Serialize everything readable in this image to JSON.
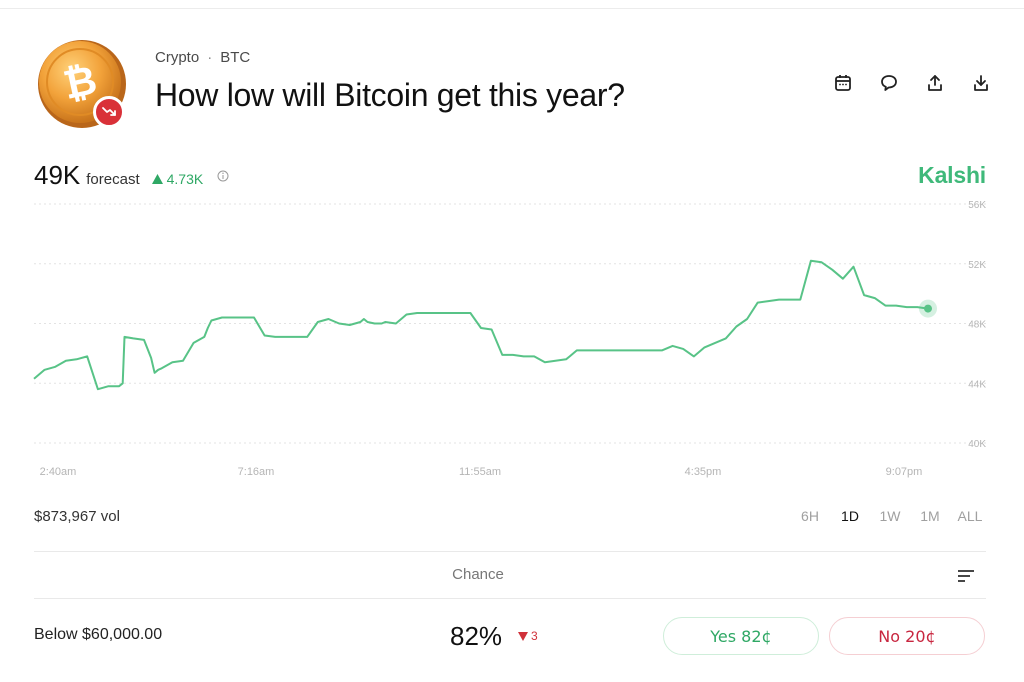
{
  "header": {
    "breadcrumb": {
      "category": "Crypto",
      "separator": "·",
      "ticker": "BTC"
    },
    "title": "How low will Bitcoin get this year?",
    "coin_icon": "bitcoin-coin-icon",
    "trend_badge_icon": "trend-down-icon",
    "toolbar": [
      "calendar-icon",
      "comment-icon",
      "share-icon",
      "download-icon"
    ]
  },
  "forecast": {
    "value": "49K",
    "label": "forecast",
    "delta": "4.73K",
    "delta_direction": "up"
  },
  "brand": "Kalshi",
  "colors": {
    "brand": "#3fb97a",
    "line": "#58c387",
    "up": "#2fa865",
    "down": "#d0313a",
    "yes": "#2fa865",
    "no": "#c8263f"
  },
  "chart_data": {
    "type": "line",
    "x_tick_labels": [
      "2:40am",
      "7:16am",
      "11:55am",
      "4:35pm",
      "9:07pm"
    ],
    "y_tick_labels": [
      "56K",
      "52K",
      "48K",
      "44K",
      "40K"
    ],
    "ylim": [
      40000,
      56000
    ],
    "grid": true,
    "series": [
      {
        "x": [
          0,
          0.6,
          1.2,
          1.8,
          2.4,
          3.0,
          3.6,
          4.2,
          4.8,
          5.0,
          5.1,
          5.6,
          6.2,
          6.6,
          6.8,
          7.0,
          7.2,
          7.8,
          8.4,
          9.0,
          9.6,
          9.8,
          10.0,
          10.6,
          11.2,
          11.8,
          12.4,
          13.0,
          13.6,
          14.2,
          14.8,
          15.4,
          16.0,
          16.6,
          17.2,
          17.8,
          18.4,
          18.6,
          18.8,
          19.2,
          19.4,
          19.6,
          19.8,
          20.4,
          21.0,
          21.6,
          22.2,
          22.8,
          23.4,
          23.6,
          24.0,
          24.6,
          25.2,
          25.8,
          26.4,
          27.0,
          27.6,
          28.2,
          28.8,
          29.4,
          30.0,
          30.2,
          30.6,
          31.2,
          31.8,
          32.4,
          33.0,
          33.6,
          34.2,
          34.8,
          35.4,
          36.0,
          36.6,
          37.2,
          37.8,
          38.4,
          39.0,
          39.6,
          40.2,
          40.8,
          41.4,
          42.0,
          42.6,
          43.2,
          43.8,
          44.4,
          45.0,
          45.6,
          46.2,
          46.8,
          47.4,
          48.0,
          48.6,
          49.2,
          49.8,
          50.4
        ],
        "y": [
          44300,
          44900,
          45100,
          45500,
          45600,
          45800,
          43600,
          43800,
          43800,
          44000,
          47100,
          47000,
          46900,
          45700,
          44700,
          44900,
          45000,
          45400,
          45500,
          46700,
          47100,
          47700,
          48200,
          48400,
          48400,
          48400,
          48400,
          47200,
          47100,
          47100,
          47100,
          47100,
          48100,
          48300,
          48000,
          47900,
          48100,
          48300,
          48100,
          48000,
          48000,
          48000,
          48100,
          48000,
          48600,
          48700,
          48700,
          48700,
          48700,
          48700,
          48700,
          48700,
          47700,
          47600,
          45900,
          45900,
          45800,
          45800,
          45400,
          45500,
          45600,
          45800,
          46200,
          46200,
          46200,
          46200,
          46200,
          46200,
          46200,
          46200,
          46200,
          46500,
          46300,
          45800,
          46400,
          46700,
          47000,
          47800,
          48300,
          49400,
          49500,
          49600,
          49600,
          49600,
          52200,
          52100,
          51600,
          51000,
          51800,
          49900,
          49700,
          49200,
          49200,
          49100,
          49100,
          49000
        ]
      }
    ]
  },
  "volume": "$873,967 vol",
  "ranges": [
    {
      "label": "6H",
      "active": false
    },
    {
      "label": "1D",
      "active": true
    },
    {
      "label": "1W",
      "active": false
    },
    {
      "label": "1M",
      "active": false
    },
    {
      "label": "ALL",
      "active": false
    }
  ],
  "market": {
    "column_header": "Chance",
    "outcome": "Below $60,000.00",
    "chance": "82%",
    "chance_delta": "3",
    "chance_delta_direction": "down",
    "yes_label": "Yes 82¢",
    "no_label": "No 20¢"
  }
}
